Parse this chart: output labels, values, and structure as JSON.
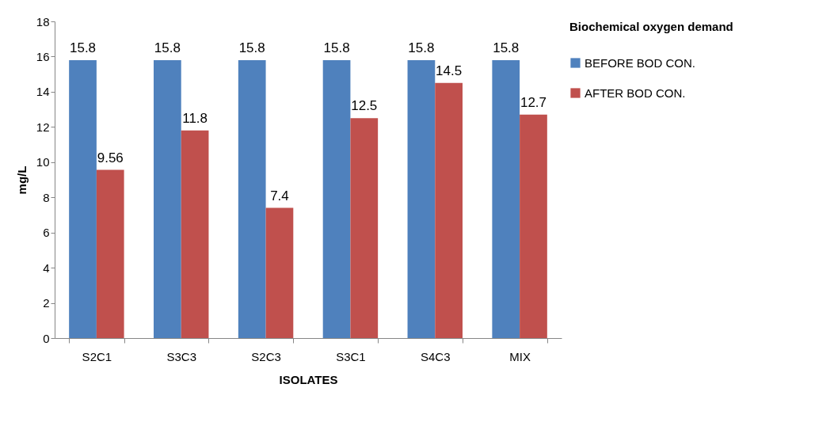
{
  "chart_data": {
    "type": "bar",
    "xlabel": "ISOLATES",
    "ylabel": "mg/L",
    "legend_title": "Biochemical oxygen demand",
    "categories": [
      "S2C1",
      "S3C3",
      "S2C3",
      "S3C1",
      "S4C3",
      "MIX"
    ],
    "series": [
      {
        "name": "BEFORE BOD CON.",
        "color": "#4f81bd",
        "values": [
          15.8,
          15.8,
          15.8,
          15.8,
          15.8,
          15.8
        ]
      },
      {
        "name": "AFTER BOD CON.",
        "color": "#c0504d",
        "values": [
          9.56,
          11.8,
          7.4,
          12.5,
          14.5,
          12.7
        ]
      }
    ],
    "ylim": [
      0,
      18
    ],
    "yticks": [
      0,
      2,
      4,
      6,
      8,
      10,
      12,
      14,
      16,
      18
    ],
    "grid": false,
    "legend": "right",
    "data_labels": true
  }
}
